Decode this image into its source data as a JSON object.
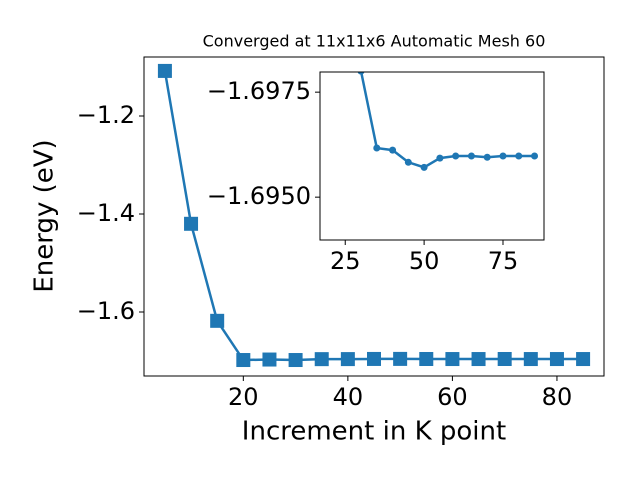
{
  "chart_data": [
    {
      "type": "line",
      "title": "Converged at 11x11x6 Automatic Mesh 60",
      "x_label": "Increment in K point",
      "y_label": "Energy (eV)",
      "x": [
        5,
        10,
        15,
        20,
        25,
        30,
        35,
        40,
        45,
        50,
        55,
        60,
        65,
        70,
        75,
        80,
        85
      ],
      "series": [
        {
          "color": "#1f77b4",
          "marker": "square",
          "values": [
            -1.108,
            -1.42,
            -1.618,
            -1.698,
            -1.697,
            -1.698,
            -1.6962,
            -1.6961,
            -1.6958,
            -1.6957,
            -1.6959,
            -1.696,
            -1.696,
            -1.6959,
            -1.696,
            -1.696,
            -1.696
          ]
        }
      ],
      "xlim": [
        1,
        89
      ],
      "xticks": [
        20,
        40,
        60,
        80
      ],
      "ylim": [
        -1.7306,
        -1.0796
      ],
      "yticks": [
        {
          "value": -1.6,
          "label": "−1.6"
        },
        {
          "value": -1.4,
          "label": "−1.4"
        },
        {
          "value": -1.2,
          "label": "−1.2"
        }
      ]
    },
    {
      "type": "line",
      "x": [
        30,
        35,
        40,
        45,
        50,
        55,
        60,
        65,
        70,
        75,
        80,
        85
      ],
      "series": [
        {
          "color": "#1f77b4",
          "marker": "circle",
          "values": [
            -1.698,
            -1.69617,
            -1.69612,
            -1.69583,
            -1.69571,
            -1.69593,
            -1.69598,
            -1.69598,
            -1.69595,
            -1.69598,
            -1.69598,
            -1.69598
          ]
        }
      ],
      "xlim": [
        17,
        88
      ],
      "xticks": [
        25,
        50,
        75
      ],
      "ylim": [
        -1.69398,
        -1.69798
      ],
      "yticks": [
        {
          "value": -1.695,
          "label": "−1.6950"
        },
        {
          "value": -1.6975,
          "label": "−1.6975"
        }
      ]
    }
  ]
}
